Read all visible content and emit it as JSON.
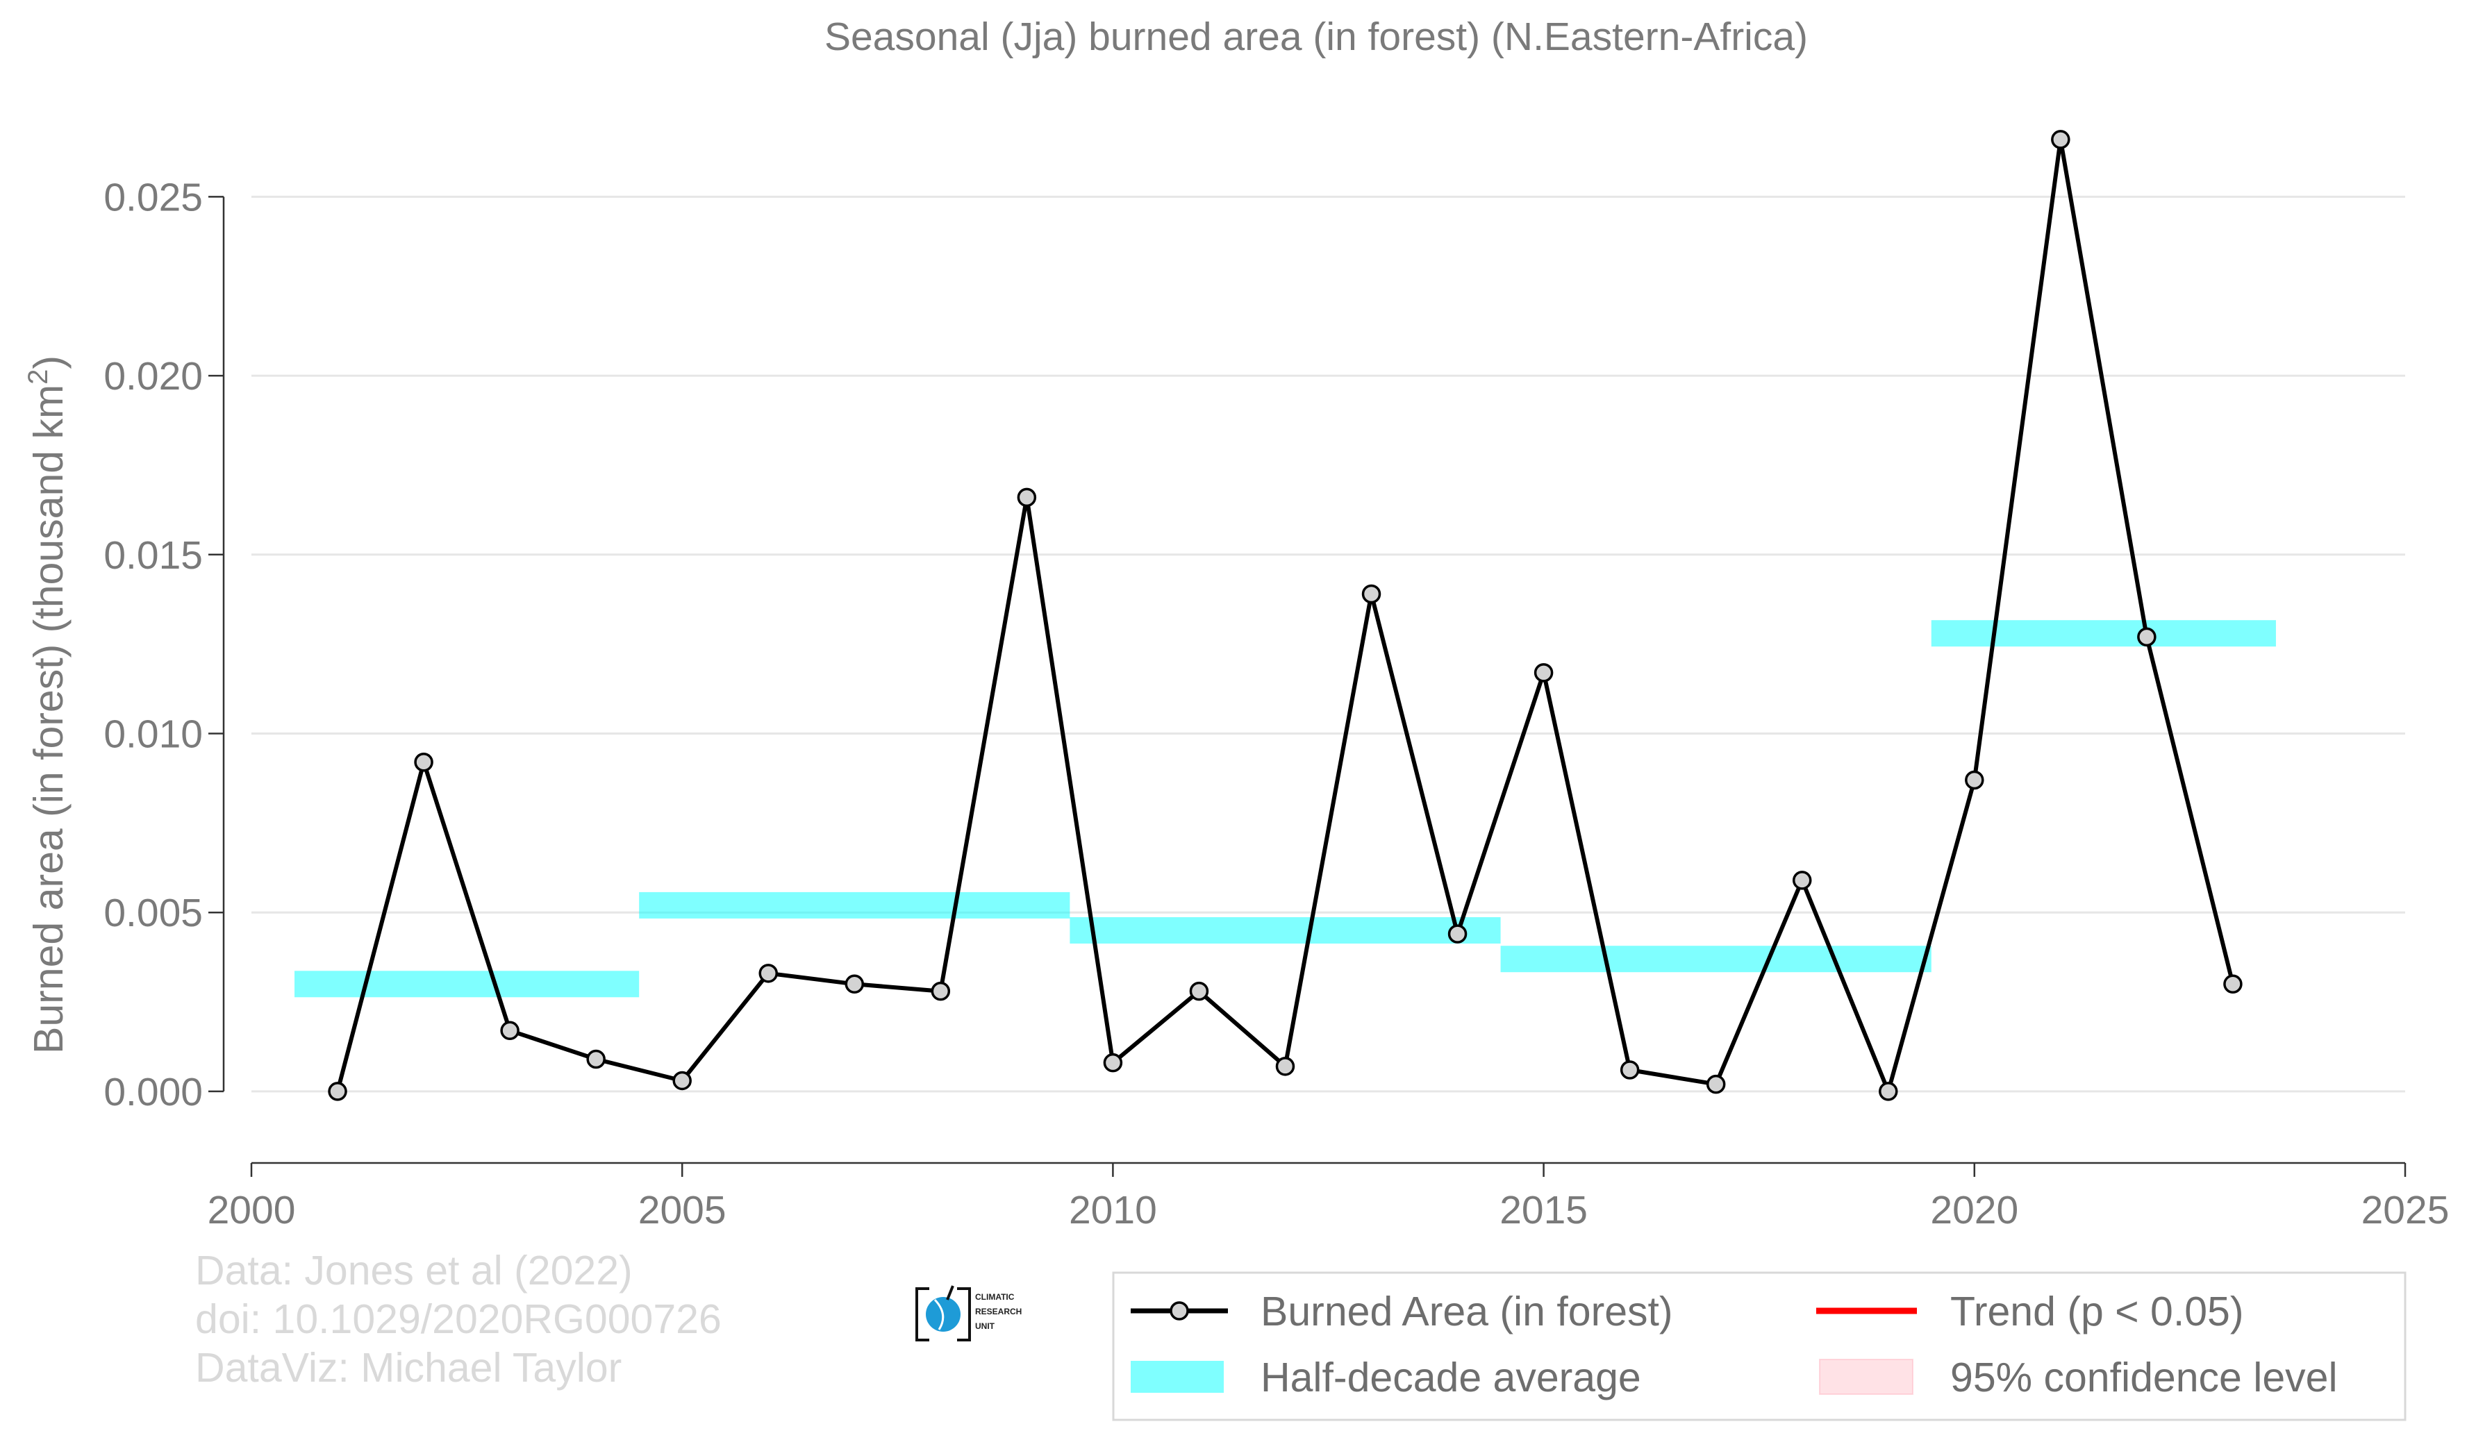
{
  "chart_data": {
    "type": "line",
    "title": "Seasonal (Jja) burned area (in forest) (N.Eastern-Africa)",
    "ylabel_main": "Burned area (in forest) (thousand km",
    "ylabel_sup": "2",
    "ylabel_close": ")",
    "xlim": [
      2000,
      2025
    ],
    "ylim": [
      -0.002,
      0.0272
    ],
    "xticks": [
      2000,
      2005,
      2010,
      2015,
      2020,
      2025
    ],
    "xtick_labels": [
      "2000",
      "2005",
      "2010",
      "2015",
      "2020",
      "2025"
    ],
    "yticks": [
      0,
      0.005,
      0.01,
      0.015,
      0.02,
      0.025
    ],
    "ytick_labels": [
      "0.000",
      "0.005",
      "0.010",
      "0.015",
      "0.020",
      "0.025"
    ],
    "grid": true,
    "legend_position": "bottom-right",
    "series": [
      {
        "name": "Burned Area (in forest)",
        "color": "#000000",
        "marker_fill": "#d3d3d3",
        "x": [
          2001,
          2002,
          2003,
          2004,
          2005,
          2006,
          2007,
          2008,
          2009,
          2010,
          2011,
          2012,
          2013,
          2014,
          2015,
          2016,
          2017,
          2018,
          2019,
          2020,
          2021,
          2022,
          2023
        ],
        "y": [
          0.0,
          0.0092,
          0.0017,
          0.0009,
          0.0003,
          0.0033,
          0.003,
          0.0028,
          0.0166,
          0.0008,
          0.0028,
          0.0007,
          0.0139,
          0.0044,
          0.0117,
          0.0006,
          0.0002,
          0.0059,
          0.0,
          0.0087,
          0.0266,
          0.0127,
          0.003
        ]
      }
    ],
    "half_decade_average": {
      "name": "Half-decade average",
      "color": "#00ffff",
      "segments": [
        {
          "x_start": 2000.5,
          "x_end": 2004.5,
          "y": 0.003
        },
        {
          "x_start": 2004.5,
          "x_end": 2009.5,
          "y": 0.0052
        },
        {
          "x_start": 2009.5,
          "x_end": 2014.5,
          "y": 0.0045
        },
        {
          "x_start": 2014.5,
          "x_end": 2019.5,
          "y": 0.0037
        },
        {
          "x_start": 2019.5,
          "x_end": 2023.5,
          "y": 0.0128
        }
      ]
    },
    "legend": [
      {
        "label": "Burned Area (in forest)",
        "kind": "line-marker",
        "color": "#000000"
      },
      {
        "label": "Trend (p < 0.05)",
        "kind": "line",
        "color": "#ff0000"
      },
      {
        "label": "Half-decade average",
        "kind": "band",
        "color": "#00ffff"
      },
      {
        "label": "95% confidence level",
        "kind": "band",
        "color": "#ffb6c1"
      }
    ]
  },
  "credits": {
    "line1": "Data: Jones et al (2022)",
    "line2": "doi: 10.1029/2020RG000726",
    "line3": "DataViz: Michael Taylor"
  },
  "logo": {
    "line1": "CLIMATIC",
    "line2": "RESEARCH",
    "line3": "UNIT"
  }
}
